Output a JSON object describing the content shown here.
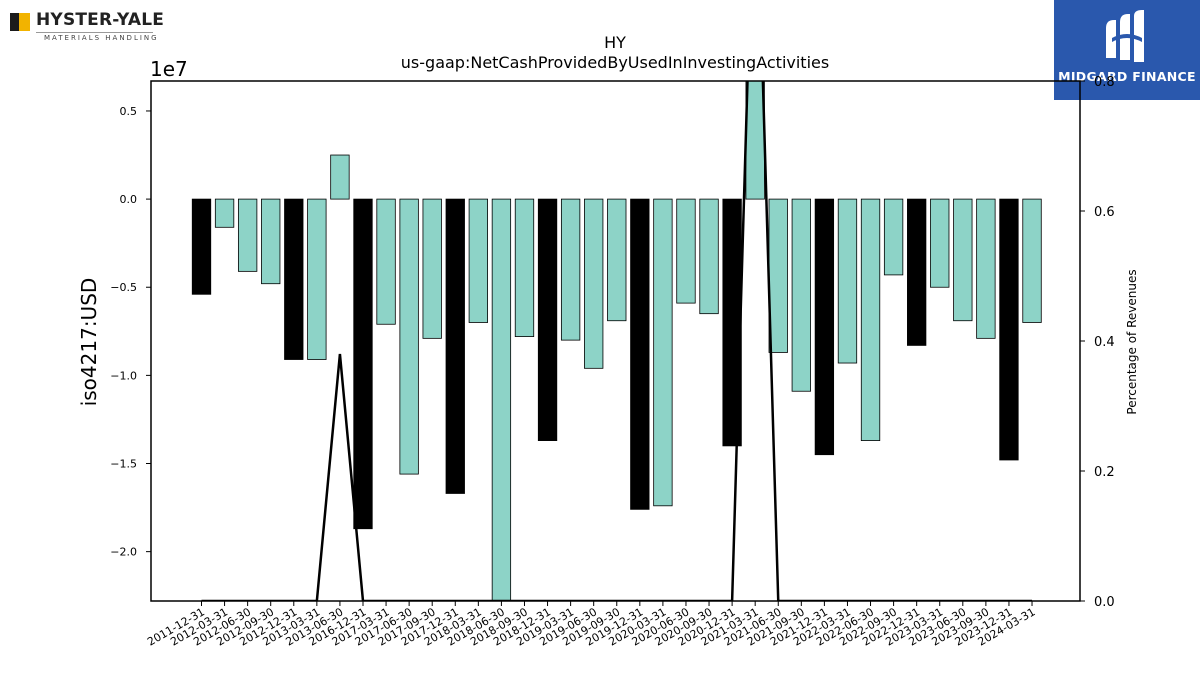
{
  "logos": {
    "left_name": "HYSTER-YALE",
    "left_sub": "MATERIALS HANDLING",
    "right_name": "MIDGARD FINANCE"
  },
  "chart_data": {
    "type": "bar",
    "title": "HY",
    "subtitle": "us-gaap:NetCashProvidedByUsedInInvestingActivities",
    "ylabel": "iso4217:USD",
    "y_offset_label": "1e7",
    "y2label": "Percentage of Revenues",
    "ylim": [
      -2.28,
      0.67
    ],
    "y2lim": [
      0.0,
      0.8
    ],
    "yticks": [
      "0.5",
      "0.0",
      "−0.5",
      "−1.0",
      "−1.5",
      "−2.0"
    ],
    "ytick_values": [
      0.5,
      0.0,
      -0.5,
      -1.0,
      -1.5,
      -2.0
    ],
    "y2ticks": [
      "0.8",
      "0.6",
      "0.4",
      "0.2",
      "0.0"
    ],
    "y2tick_values": [
      0.8,
      0.6,
      0.4,
      0.2,
      0.0
    ],
    "categories": [
      "2011-12-31",
      "2012-03-31",
      "2012-06-30",
      "2012-09-30",
      "2012-12-31",
      "2013-03-31",
      "2013-06-30",
      "2016-12-31",
      "2017-03-31",
      "2017-06-30",
      "2017-09-30",
      "2017-12-31",
      "2018-03-31",
      "2018-06-30",
      "2018-09-30",
      "2018-12-31",
      "2019-03-31",
      "2019-06-30",
      "2019-09-30",
      "2019-12-31",
      "2020-03-31",
      "2020-06-30",
      "2020-09-30",
      "2020-12-31",
      "2021-03-31",
      "2021-06-30",
      "2021-09-30",
      "2021-12-31",
      "2022-03-31",
      "2022-06-30",
      "2022-09-30",
      "2022-12-31",
      "2023-03-31",
      "2023-06-30",
      "2023-09-30",
      "2023-12-31",
      "2024-03-31"
    ],
    "values": [
      -0.54,
      -0.16,
      -0.41,
      -0.48,
      -0.91,
      -0.91,
      0.25,
      -1.87,
      -0.71,
      -1.56,
      -0.79,
      -1.67,
      -0.7,
      -2.4,
      -0.78,
      -1.37,
      -0.8,
      -0.96,
      -0.69,
      -1.76,
      -1.74,
      -0.59,
      -0.65,
      -1.4,
      0.9,
      -0.87,
      -1.09,
      -1.45,
      -0.93,
      -1.37,
      -0.43,
      -0.83,
      -0.5,
      -0.69,
      -0.79,
      -1.48,
      -0.7
    ],
    "bar_colors": [
      "#000000",
      "#8dd3c7",
      "#8dd3c7",
      "#8dd3c7",
      "#000000",
      "#8dd3c7",
      "#8dd3c7",
      "#000000",
      "#8dd3c7",
      "#8dd3c7",
      "#8dd3c7",
      "#000000",
      "#8dd3c7",
      "#8dd3c7",
      "#8dd3c7",
      "#000000",
      "#8dd3c7",
      "#8dd3c7",
      "#8dd3c7",
      "#000000",
      "#8dd3c7",
      "#8dd3c7",
      "#8dd3c7",
      "#000000",
      "#8dd3c7",
      "#8dd3c7",
      "#8dd3c7",
      "#000000",
      "#8dd3c7",
      "#8dd3c7",
      "#8dd3c7",
      "#000000",
      "#8dd3c7",
      "#8dd3c7",
      "#8dd3c7",
      "#000000",
      "#8dd3c7"
    ],
    "line_series": {
      "axis": "right",
      "color": "#000000",
      "values": [
        0,
        0,
        0,
        0,
        0,
        0,
        0.38,
        0,
        0,
        0,
        0,
        0,
        0,
        0,
        0,
        0,
        0,
        0,
        0,
        0,
        0,
        0,
        0,
        0,
        1.2,
        0,
        0,
        0,
        0,
        0,
        0,
        0,
        0,
        0,
        0,
        0,
        0
      ]
    },
    "grid": false,
    "legend": "none"
  }
}
